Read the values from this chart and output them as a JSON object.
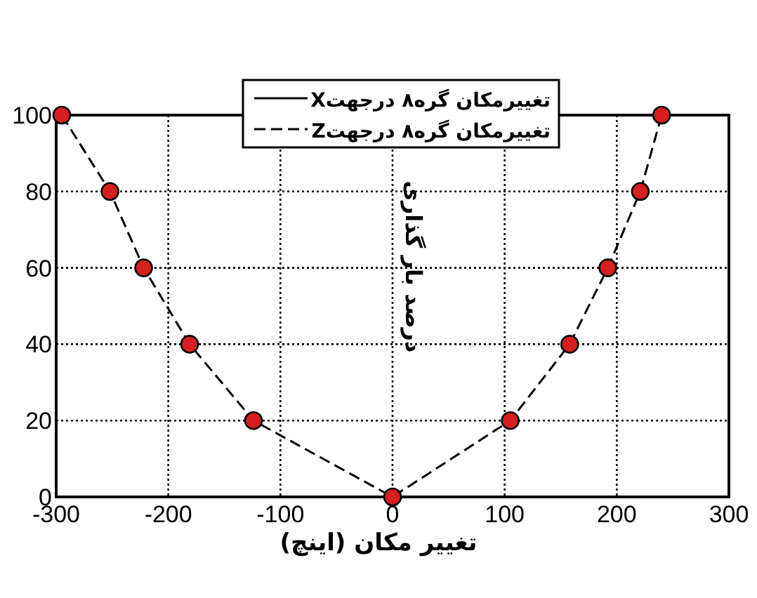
{
  "chart_data": {
    "type": "line",
    "xlabel": "تغییر مکان (اینچ)",
    "ylabel": "درصد بار گذاری",
    "xlim": [
      -300,
      300
    ],
    "ylim": [
      0,
      100
    ],
    "xticks": [
      -300,
      -200,
      -100,
      0,
      100,
      200,
      300
    ],
    "yticks": [
      0,
      20,
      40,
      60,
      80,
      100
    ],
    "grid": true,
    "legend": "top",
    "marker": "circle",
    "series": [
      {
        "name": "تغییرمکان گره۸ درجهتX",
        "line_style": "solid",
        "color": "#000000",
        "values": [
          null,
          null,
          null,
          null,
          null,
          null,
          null,
          null,
          null,
          null,
          null
        ]
      },
      {
        "name": "تغییرمکان گره۸ درجهتZ",
        "line_style": "dashed",
        "color": "#000000",
        "colors": [
          "#d42020",
          "#d42020",
          "#d42020",
          "#d42020",
          "#d42020",
          "#d42020",
          "#d42020",
          "#d42020",
          "#d42020",
          "#d42020",
          "#d42020"
        ],
        "x": [
          -295,
          -252,
          -222,
          -181,
          -124,
          0,
          105,
          158,
          192,
          221,
          240
        ],
        "values": [
          100,
          80,
          60,
          40,
          20,
          0,
          20,
          40,
          60,
          80,
          100
        ]
      }
    ]
  }
}
